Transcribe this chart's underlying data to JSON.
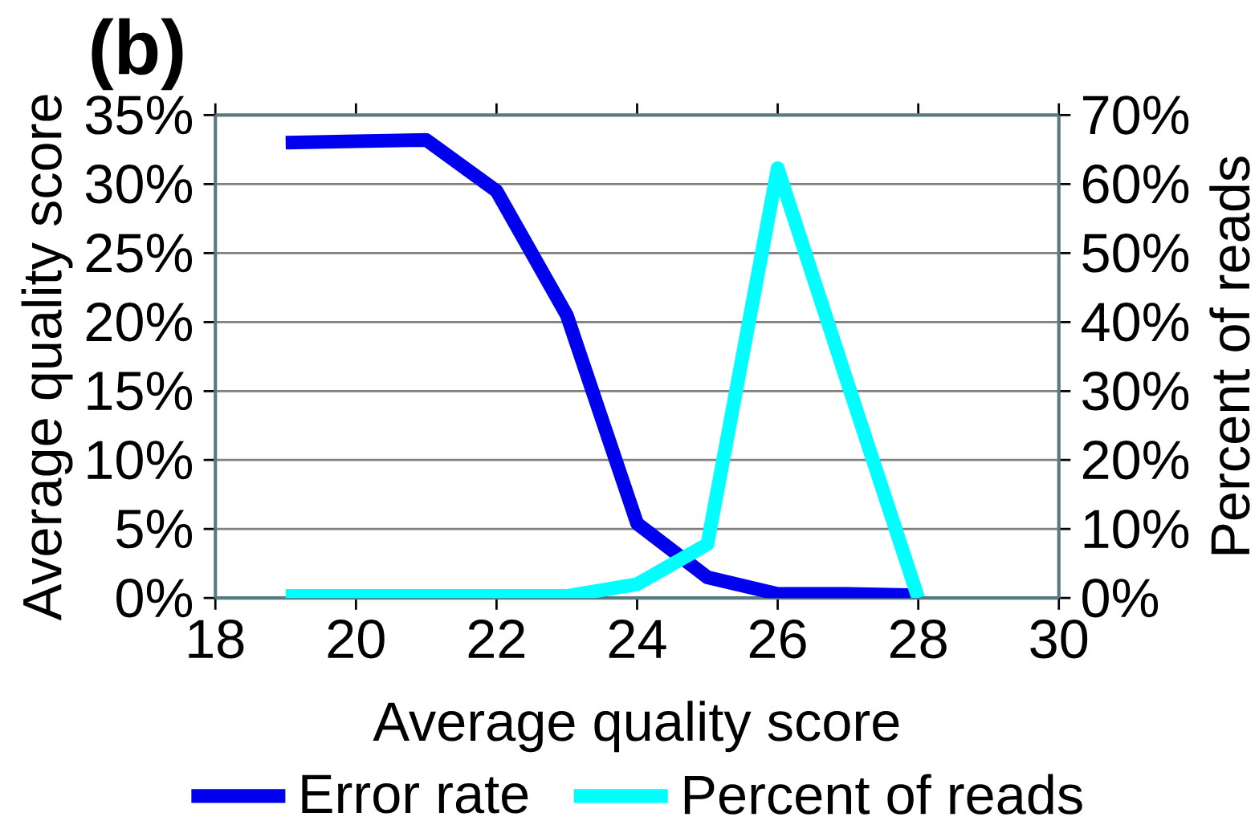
{
  "chart_data": {
    "type": "line",
    "title": "(b)",
    "xlabel": "Average quality score",
    "ylabel": "Average quality score",
    "y2label": "Percent of reads",
    "x": [
      19,
      20,
      21,
      22,
      23,
      24,
      25,
      26,
      27,
      28
    ],
    "series": [
      {
        "name": "Error rate",
        "color": "#0000ee",
        "values": [
          33.0,
          33.1,
          33.2,
          29.5,
          20.5,
          5.4,
          1.5,
          0.3,
          0.3,
          0.2
        ]
      },
      {
        "name": "Percent of reads",
        "color": "#00ffff",
        "axis": "y2",
        "values": [
          0.3,
          0.3,
          0.3,
          0.3,
          0.3,
          2.0,
          7.8,
          62.3,
          31,
          0
        ]
      }
    ],
    "xlim": [
      18,
      30
    ],
    "xticks": [
      18,
      20,
      22,
      24,
      26,
      28,
      30
    ],
    "ylim": [
      0,
      35
    ],
    "yticks": [
      {
        "value": 0,
        "label": "0%"
      },
      {
        "value": 5,
        "label": "5%"
      },
      {
        "value": 10,
        "label": "10%"
      },
      {
        "value": 15,
        "label": "15%"
      },
      {
        "value": 20,
        "label": "20%"
      },
      {
        "value": 25,
        "label": "25%"
      },
      {
        "value": 30,
        "label": "30%"
      },
      {
        "value": 35,
        "label": "35%"
      }
    ],
    "y2lim": [
      0,
      70
    ],
    "y2ticks": [
      {
        "value": 0,
        "label": "0%"
      },
      {
        "value": 10,
        "label": "10%"
      },
      {
        "value": 20,
        "label": "20%"
      },
      {
        "value": 30,
        "label": "30%"
      },
      {
        "value": 40,
        "label": "40%"
      },
      {
        "value": 50,
        "label": "50%"
      },
      {
        "value": 60,
        "label": "60%"
      },
      {
        "value": 70,
        "label": "70%"
      }
    ],
    "grid": "y",
    "legend": "bottom",
    "marker": "none",
    "line_style": "solid"
  }
}
